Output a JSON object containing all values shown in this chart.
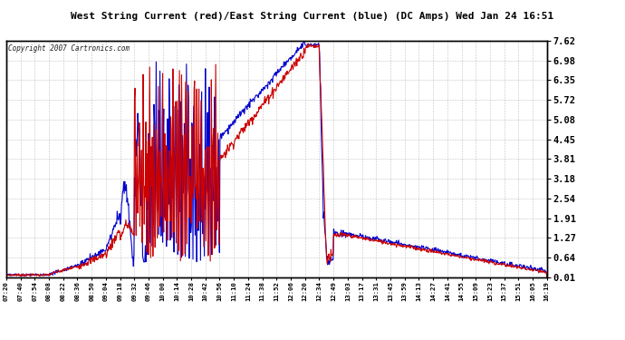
{
  "title": "West String Current (red)/East String Current (blue) (DC Amps) Wed Jan 24 16:51",
  "copyright": "Copyright 2007 Cartronics.com",
  "yticks": [
    7.62,
    6.98,
    6.35,
    5.72,
    5.08,
    4.45,
    3.81,
    3.18,
    2.54,
    1.91,
    1.27,
    0.64,
    0.01
  ],
  "ylim": [
    0.01,
    7.62
  ],
  "xtick_labels": [
    "07:20",
    "07:40",
    "07:54",
    "08:08",
    "08:22",
    "08:36",
    "08:50",
    "09:04",
    "09:18",
    "09:32",
    "09:46",
    "10:00",
    "10:14",
    "10:28",
    "10:42",
    "10:56",
    "11:10",
    "11:24",
    "11:38",
    "11:52",
    "12:06",
    "12:20",
    "12:34",
    "12:49",
    "13:03",
    "13:17",
    "13:31",
    "13:45",
    "13:59",
    "14:13",
    "14:27",
    "14:41",
    "14:55",
    "15:09",
    "15:23",
    "15:37",
    "15:51",
    "16:05",
    "16:19"
  ],
  "bg_color": "#ffffff",
  "plot_bg_color": "#ffffff",
  "grid_color": "#aaaaaa",
  "red_color": "#cc0000",
  "blue_color": "#0000cc",
  "title_bg": "#c8c8c8",
  "border_color": "#000000"
}
